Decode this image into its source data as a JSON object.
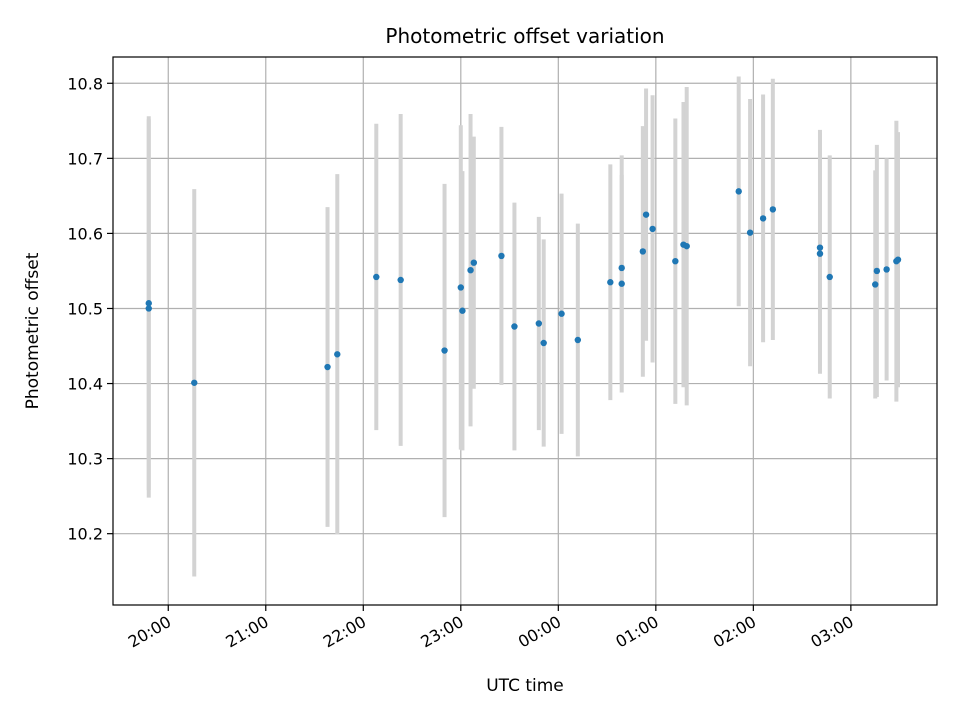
{
  "chart_data": {
    "type": "scatter",
    "title": "Photometric offset variation",
    "xlabel": "UTC time",
    "ylabel": "Photometric offset",
    "x_unit": "UTC time (HH:MM, crossing midnight)",
    "xlim": [
      "19:26",
      "03:53"
    ],
    "ylim": [
      10.105,
      10.835
    ],
    "grid": true,
    "x_ticks": [
      "20:00",
      "21:00",
      "22:00",
      "23:00",
      "00:00",
      "01:00",
      "02:00",
      "03:00"
    ],
    "y_ticks": [
      "10.2",
      "10.3",
      "10.4",
      "10.5",
      "10.6",
      "10.7",
      "10.8"
    ],
    "colors": {
      "point": "#1f77b4",
      "errorbar": "#d3d3d3",
      "grid": "#b0b0b0"
    },
    "series": [
      {
        "points": [
          {
            "x": "19:48",
            "y": 10.507,
            "err": 0.249
          },
          {
            "x": "19:48",
            "y": 10.5,
            "err": 0.252
          },
          {
            "x": "20:16",
            "y": 10.401,
            "err": 0.258
          },
          {
            "x": "21:38",
            "y": 10.422,
            "err": 0.213
          },
          {
            "x": "21:44",
            "y": 10.439,
            "err": 0.24
          },
          {
            "x": "22:08",
            "y": 10.542,
            "err": 0.204
          },
          {
            "x": "22:23",
            "y": 10.538,
            "err": 0.221
          },
          {
            "x": "22:50",
            "y": 10.444,
            "err": 0.222
          },
          {
            "x": "23:00",
            "y": 10.528,
            "err": 0.216
          },
          {
            "x": "23:01",
            "y": 10.497,
            "err": 0.186
          },
          {
            "x": "23:06",
            "y": 10.551,
            "err": 0.208
          },
          {
            "x": "23:08",
            "y": 10.561,
            "err": 0.168
          },
          {
            "x": "23:25",
            "y": 10.57,
            "err": 0.172
          },
          {
            "x": "23:33",
            "y": 10.476,
            "err": 0.165
          },
          {
            "x": "23:48",
            "y": 10.48,
            "err": 0.142
          },
          {
            "x": "23:51",
            "y": 10.454,
            "err": 0.138
          },
          {
            "x": "00:02",
            "y": 10.493,
            "err": 0.16
          },
          {
            "x": "00:12",
            "y": 10.458,
            "err": 0.155
          },
          {
            "x": "00:32",
            "y": 10.535,
            "err": 0.157
          },
          {
            "x": "00:39",
            "y": 10.554,
            "err": 0.15
          },
          {
            "x": "00:39",
            "y": 10.533,
            "err": 0.145
          },
          {
            "x": "00:52",
            "y": 10.576,
            "err": 0.167
          },
          {
            "x": "00:54",
            "y": 10.625,
            "err": 0.168
          },
          {
            "x": "00:58",
            "y": 10.606,
            "err": 0.178
          },
          {
            "x": "01:12",
            "y": 10.563,
            "err": 0.19
          },
          {
            "x": "01:17",
            "y": 10.585,
            "err": 0.19
          },
          {
            "x": "01:19",
            "y": 10.583,
            "err": 0.212
          },
          {
            "x": "01:51",
            "y": 10.656,
            "err": 0.153
          },
          {
            "x": "01:58",
            "y": 10.601,
            "err": 0.178
          },
          {
            "x": "02:06",
            "y": 10.62,
            "err": 0.165
          },
          {
            "x": "02:12",
            "y": 10.632,
            "err": 0.174
          },
          {
            "x": "02:41",
            "y": 10.581,
            "err": 0.157
          },
          {
            "x": "02:41",
            "y": 10.573,
            "err": 0.16
          },
          {
            "x": "02:47",
            "y": 10.542,
            "err": 0.162
          },
          {
            "x": "03:15",
            "y": 10.532,
            "err": 0.152
          },
          {
            "x": "03:16",
            "y": 10.55,
            "err": 0.168
          },
          {
            "x": "03:22",
            "y": 10.552,
            "err": 0.148
          },
          {
            "x": "03:28",
            "y": 10.563,
            "err": 0.187
          },
          {
            "x": "03:29",
            "y": 10.565,
            "err": 0.17
          }
        ]
      }
    ]
  }
}
